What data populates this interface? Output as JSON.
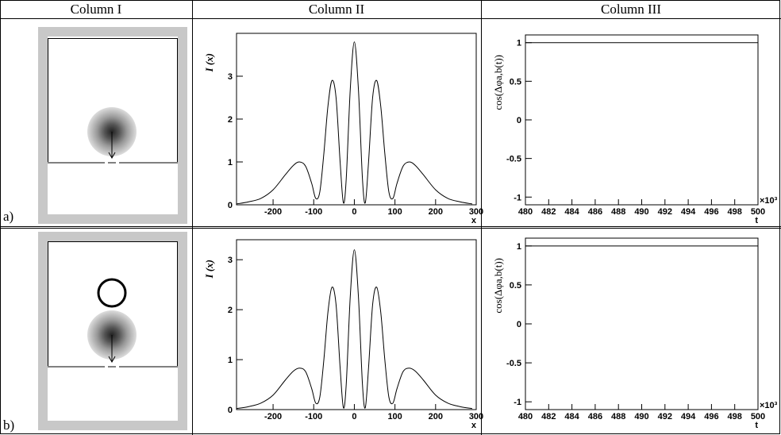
{
  "table": {
    "headers": [
      "Column I",
      "Column II",
      "Column III"
    ],
    "row_labels": [
      "a)",
      "b)"
    ]
  },
  "chart_data": [
    {
      "type": "line",
      "y_label": "I (x)",
      "x_label": "x",
      "x": [
        -290,
        -260,
        -230,
        -200,
        -170,
        -150,
        -135,
        -120,
        -105,
        -95,
        -85,
        -75,
        -65,
        -55,
        -45,
        -35,
        -27,
        -20,
        -10,
        0,
        10,
        20,
        27,
        35,
        45,
        55,
        65,
        75,
        85,
        95,
        105,
        120,
        135,
        150,
        170,
        200,
        230,
        260,
        290
      ],
      "values": [
        0.02,
        0.07,
        0.15,
        0.35,
        0.7,
        0.92,
        1.0,
        0.9,
        0.5,
        0.15,
        0.3,
        1.2,
        2.3,
        2.9,
        2.5,
        1.0,
        0.05,
        0.6,
        2.7,
        3.8,
        2.7,
        0.6,
        0.05,
        1.0,
        2.5,
        2.9,
        2.3,
        1.2,
        0.3,
        0.15,
        0.5,
        0.9,
        1.0,
        0.92,
        0.7,
        0.35,
        0.15,
        0.07,
        0.02
      ],
      "color": "#000000",
      "xlim": [
        -290,
        300
      ],
      "ylim": [
        0,
        4.0
      ],
      "xticks": [
        -200,
        -100,
        0,
        100,
        200,
        300
      ],
      "yticks": [
        0,
        1,
        2,
        3
      ]
    },
    {
      "type": "line",
      "y_label": "cos(Δφa,b(t))",
      "x_label": "t",
      "x_multiplier": "×10³",
      "x": [
        480,
        500
      ],
      "values": [
        1,
        1
      ],
      "color": "#000000",
      "xlim": [
        480,
        500
      ],
      "ylim": [
        -1.1,
        1.1
      ],
      "xticks": [
        480,
        482,
        484,
        486,
        488,
        490,
        492,
        494,
        496,
        498,
        500
      ],
      "yticks": [
        -1,
        -0.5,
        0,
        0.5,
        1
      ]
    },
    {
      "type": "line",
      "y_label": "I (x)",
      "x_label": "x",
      "x": [
        -290,
        -260,
        -230,
        -200,
        -170,
        -150,
        -135,
        -120,
        -105,
        -95,
        -85,
        -75,
        -65,
        -55,
        -45,
        -35,
        -27,
        -20,
        -10,
        0,
        10,
        20,
        27,
        35,
        45,
        55,
        65,
        75,
        85,
        95,
        105,
        120,
        135,
        150,
        170,
        200,
        230,
        260,
        290
      ],
      "values": [
        0.02,
        0.06,
        0.13,
        0.29,
        0.59,
        0.77,
        0.83,
        0.76,
        0.42,
        0.13,
        0.25,
        1.0,
        1.95,
        2.45,
        2.1,
        0.84,
        0.04,
        0.5,
        2.27,
        3.2,
        2.27,
        0.5,
        0.04,
        0.84,
        2.1,
        2.45,
        1.95,
        1.0,
        0.25,
        0.13,
        0.42,
        0.76,
        0.83,
        0.77,
        0.59,
        0.29,
        0.13,
        0.06,
        0.02
      ],
      "color": "#000000",
      "xlim": [
        -290,
        300
      ],
      "ylim": [
        0,
        3.4
      ],
      "xticks": [
        -200,
        -100,
        0,
        100,
        200,
        300
      ],
      "yticks": [
        0,
        1,
        2,
        3
      ]
    },
    {
      "type": "line",
      "y_label": "cos(Δφa,b(t))",
      "x_label": "t",
      "x_multiplier": "×10³",
      "x": [
        480,
        500
      ],
      "values": [
        1,
        1
      ],
      "color": "#000000",
      "xlim": [
        480,
        500
      ],
      "ylim": [
        -1.1,
        1.1
      ],
      "xticks": [
        480,
        482,
        484,
        486,
        488,
        490,
        492,
        494,
        496,
        498,
        500
      ],
      "yticks": [
        -1,
        -0.5,
        0,
        0.5,
        1
      ]
    }
  ]
}
